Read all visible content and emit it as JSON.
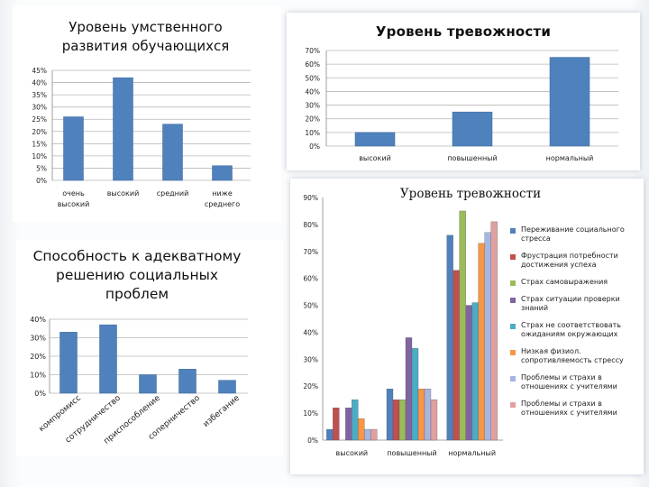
{
  "chart_data": [
    {
      "type": "bar",
      "title": "Уровень умственного развития обучающихся",
      "categories": [
        "очень высокий",
        "высокий",
        "средний",
        "ниже среднего"
      ],
      "values": [
        26,
        42,
        23,
        6
      ],
      "ylim": [
        0,
        45
      ],
      "yticks": [
        "0%",
        "5%",
        "10%",
        "15%",
        "20%",
        "25%",
        "30%",
        "35%",
        "40%",
        "45%"
      ],
      "grid": true,
      "color": "#4f81bd"
    },
    {
      "type": "bar",
      "title": "Уровень тревожности",
      "categories": [
        "высокий",
        "повышенный",
        "нормальный"
      ],
      "values": [
        10,
        25,
        65
      ],
      "ylim": [
        0,
        70
      ],
      "yticks": [
        "0%",
        "10%",
        "20%",
        "30%",
        "40%",
        "50%",
        "60%",
        "70%"
      ],
      "grid": true,
      "color": "#4f81bd"
    },
    {
      "type": "bar",
      "title": "Способность к адекватному решению социальных проблем",
      "categories": [
        "компромисс",
        "сотрудничество",
        "приспособление",
        "соперничество",
        "избегание"
      ],
      "values": [
        33,
        37,
        10,
        13,
        7
      ],
      "ylim": [
        0,
        40
      ],
      "yticks": [
        "0%",
        "10%",
        "20%",
        "30%",
        "40%"
      ],
      "grid": true,
      "color": "#4f81bd"
    },
    {
      "type": "bar",
      "title": "Уровень тревожности",
      "categories": [
        "высокий",
        "повышенный",
        "нормальный"
      ],
      "series": [
        {
          "name": "Переживание социального стресса",
          "color": "#4f81bd",
          "values": [
            4,
            19,
            76
          ]
        },
        {
          "name": "Фрустрация потребности достижения успеха",
          "color": "#c0504d",
          "values": [
            12,
            15,
            63
          ]
        },
        {
          "name": "Страх самовыражения",
          "color": "#9bbb59",
          "values": [
            0,
            15,
            85
          ]
        },
        {
          "name": "Страх ситуации проверки знаний",
          "color": "#8064a2",
          "values": [
            12,
            38,
            50
          ]
        },
        {
          "name": "Страх не соответствовать ожиданиям окружающих",
          "color": "#4bacc6",
          "values": [
            15,
            34,
            51
          ]
        },
        {
          "name": "Низкая физиол. сопротивляемость стрессу",
          "color": "#f79646",
          "values": [
            8,
            19,
            73
          ]
        },
        {
          "name": "Проблемы и страхи в отношениях с учителями",
          "color": "#a5b6e0",
          "values": [
            4,
            19,
            77
          ]
        },
        {
          "name": "Проблемы и страхи в отношениях с учителями",
          "color": "#e0a0a0",
          "values": [
            4,
            15,
            81
          ]
        }
      ],
      "ylim": [
        0,
        90
      ],
      "yticks": [
        "0%",
        "10%",
        "20%",
        "30%",
        "40%",
        "50%",
        "60%",
        "70%",
        "80%",
        "90%"
      ],
      "grid": false
    }
  ]
}
